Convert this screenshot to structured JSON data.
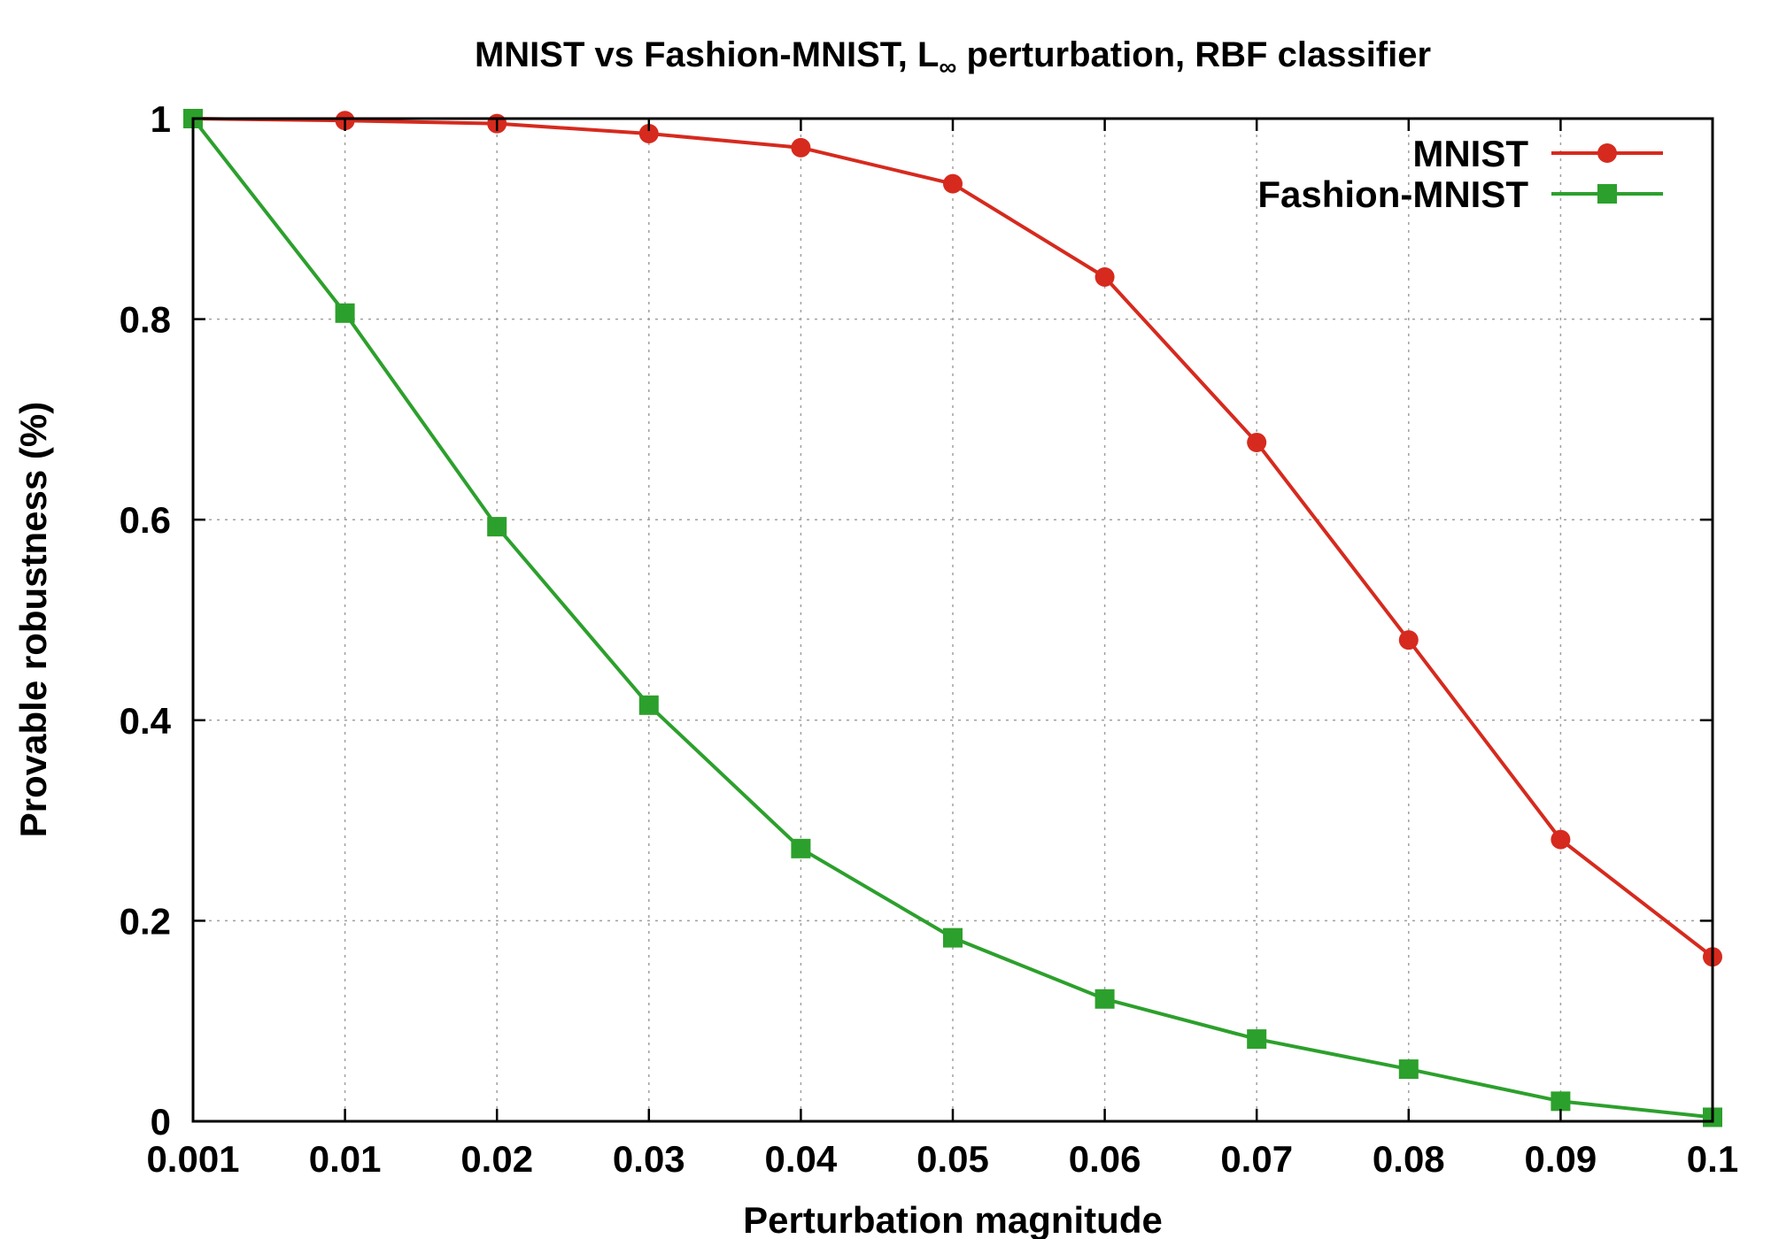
{
  "chart_data": {
    "type": "line",
    "title_main": "MNIST vs Fashion-MNIST, L",
    "title_sub": "∞",
    "title_rest": " perturbation, RBF classifier",
    "xlabel": "Perturbation magnitude",
    "ylabel": "Provable robustness (%)",
    "categories": [
      "0.001",
      "0.01",
      "0.02",
      "0.03",
      "0.04",
      "0.05",
      "0.06",
      "0.07",
      "0.08",
      "0.09",
      "0.1"
    ],
    "yticks": [
      "0",
      "0.2",
      "0.4",
      "0.6",
      "0.8",
      "1"
    ],
    "ylim": [
      0,
      1
    ],
    "grid": true,
    "legend_position": "top-right",
    "series": [
      {
        "name": "MNIST",
        "color": "#d62a1e",
        "marker": "circle",
        "values": [
          1.0,
          0.998,
          0.995,
          0.985,
          0.971,
          0.935,
          0.842,
          0.677,
          0.48,
          0.281,
          0.164
        ]
      },
      {
        "name": "Fashion-MNIST",
        "color": "#2ca02c",
        "marker": "square",
        "values": [
          1.0,
          0.806,
          0.593,
          0.415,
          0.272,
          0.183,
          0.122,
          0.082,
          0.052,
          0.02,
          0.004
        ]
      }
    ]
  }
}
